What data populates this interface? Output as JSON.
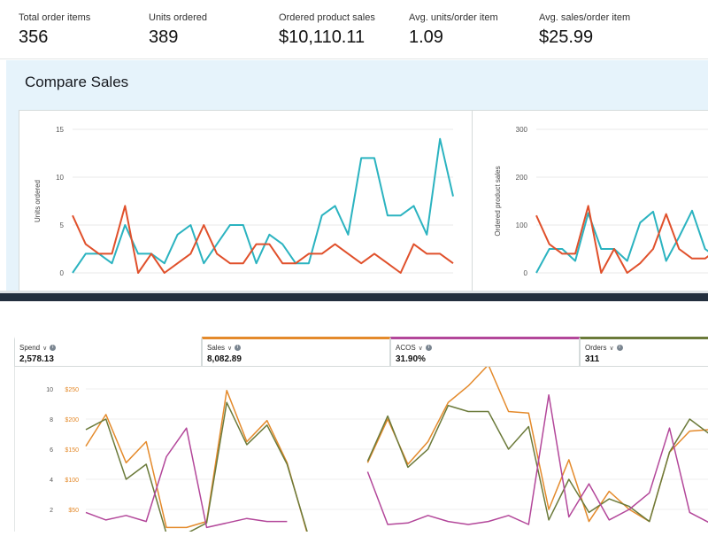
{
  "kpis": [
    {
      "label": "Total order items",
      "value": "356"
    },
    {
      "label": "Units ordered",
      "value": "389"
    },
    {
      "label": "Ordered product sales",
      "value": "$10,110.11"
    },
    {
      "label": "Avg. units/order item",
      "value": "1.09"
    },
    {
      "label": "Avg. sales/order item",
      "value": "$25.99"
    }
  ],
  "compare": {
    "title": "Compare Sales"
  },
  "metrics": [
    {
      "label": "Spend",
      "value": "2,578.13",
      "color": "#ffffff"
    },
    {
      "label": "Sales",
      "value": "8,082.89",
      "color": "#e48a2b"
    },
    {
      "label": "ACOS",
      "value": "31.90%",
      "color": "#b3479a"
    },
    {
      "label": "Orders",
      "value": "311",
      "color": "#6b7a3a"
    }
  ],
  "icons": {
    "dropdown": "chevron-down-icon",
    "info": "info-icon"
  },
  "chart_data": [
    {
      "type": "line",
      "ylabel": "Units ordered",
      "ylim": [
        0,
        15
      ],
      "yticks": [
        "0",
        "5",
        "10",
        "15"
      ],
      "series": [
        {
          "color": "#2bb3c0",
          "values": [
            0,
            2,
            2,
            1,
            5,
            2,
            2,
            1,
            4,
            5,
            1,
            3,
            5,
            5,
            1,
            4,
            3,
            1,
            1,
            6,
            7,
            4,
            12,
            12,
            6,
            6,
            7,
            4,
            14,
            8
          ]
        },
        {
          "color": "#e0502b",
          "values": [
            6,
            3,
            2,
            2,
            7,
            0,
            2,
            0,
            1,
            2,
            5,
            2,
            1,
            1,
            3,
            3,
            1,
            1,
            2,
            2,
            3,
            2,
            1,
            2,
            1,
            0,
            3,
            2,
            2,
            1
          ]
        }
      ]
    },
    {
      "type": "line",
      "ylabel": "Ordered product sales",
      "ylim": [
        0,
        300
      ],
      "yticks": [
        "0",
        "100",
        "200",
        "300"
      ],
      "series": [
        {
          "color": "#2bb3c0",
          "values": [
            0,
            50,
            50,
            25,
            125,
            50,
            50,
            25,
            105,
            128,
            25,
            75,
            130,
            50,
            30
          ]
        },
        {
          "color": "#e0502b",
          "values": [
            120,
            60,
            40,
            40,
            140,
            0,
            50,
            0,
            20,
            50,
            123,
            50,
            30,
            30,
            50
          ]
        }
      ]
    },
    {
      "type": "line",
      "yticks_left": [
        "2",
        "4",
        "6",
        "8",
        "10"
      ],
      "yticks_right": [
        "$50",
        "$100",
        "$150",
        "$200",
        "$250"
      ],
      "ylim": [
        0,
        10
      ],
      "series": [
        {
          "color": "#e48a2b",
          "values": [
            6.2,
            8.3,
            5.1,
            6.5,
            0.8,
            0.8,
            1.2,
            9.9,
            6.5,
            7.9,
            5.1,
            0.4,
            0,
            null,
            5.1,
            8.0,
            5.0,
            6.5,
            9.1,
            10.2,
            11.6,
            8.5,
            8.4,
            2.0,
            5.3,
            1.2,
            3.2,
            2.0,
            1.2,
            5.8,
            7.2,
            7.3
          ]
        },
        {
          "color": "#6b7a3a",
          "values": [
            7.3,
            8.0,
            4.0,
            5.0,
            0.4,
            0.4,
            1.1,
            9.1,
            6.3,
            7.6,
            5.0,
            0.5,
            -0.5,
            null,
            5.2,
            8.2,
            4.8,
            6.0,
            8.9,
            8.5,
            8.5,
            6.0,
            7.5,
            1.3,
            4.0,
            1.8,
            2.7,
            2.2,
            1.2,
            5.8,
            8.0,
            7.0
          ]
        },
        {
          "color": "#b3479a",
          "values": [
            1.8,
            1.3,
            1.6,
            1.2,
            5.5,
            7.4,
            0.8,
            1.1,
            1.4,
            1.2,
            1.2,
            null,
            null,
            null,
            4.5,
            1.0,
            1.1,
            1.6,
            1.2,
            1.0,
            1.2,
            1.6,
            1.0,
            9.6,
            1.5,
            3.7,
            1.3,
            2.0,
            3.1,
            7.4,
            1.8,
            1.1
          ]
        }
      ]
    }
  ]
}
